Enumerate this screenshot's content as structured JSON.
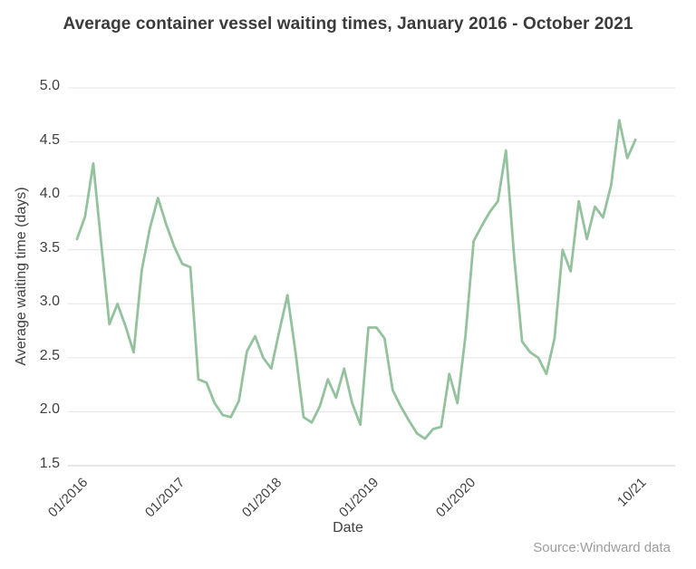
{
  "source": "Source:Windward data",
  "chart_data": {
    "type": "line",
    "title": "Average container vessel waiting times, January 2016 - October 2021",
    "xlabel": "Date",
    "ylabel": "Average waiting time (days)",
    "ylim": [
      1.5,
      5.0
    ],
    "yticks": [
      1.5,
      2.0,
      2.5,
      3.0,
      3.5,
      4.0,
      4.5,
      5.0
    ],
    "grid": true,
    "legend": false,
    "line_color": "#94c29e",
    "grid_color": "#e4e4e4",
    "baseline_color": "#cfcfcf",
    "x": [
      "01/2016",
      "02/2016",
      "03/2016",
      "04/2016",
      "05/2016",
      "06/2016",
      "07/2016",
      "08/2016",
      "09/2016",
      "10/2016",
      "11/2016",
      "12/2016",
      "01/2017",
      "02/2017",
      "03/2017",
      "04/2017",
      "05/2017",
      "06/2017",
      "07/2017",
      "08/2017",
      "09/2017",
      "10/2017",
      "11/2017",
      "12/2017",
      "01/2018",
      "02/2018",
      "03/2018",
      "04/2018",
      "05/2018",
      "06/2018",
      "07/2018",
      "08/2018",
      "09/2018",
      "10/2018",
      "11/2018",
      "12/2018",
      "01/2019",
      "02/2019",
      "03/2019",
      "04/2019",
      "05/2019",
      "06/2019",
      "07/2019",
      "08/2019",
      "09/2019",
      "10/2019",
      "11/2019",
      "12/2019",
      "01/2020",
      "02/2020",
      "03/2020",
      "04/2020",
      "05/2020",
      "06/2020",
      "07/2020",
      "08/2020",
      "09/2020",
      "10/2020",
      "11/2020",
      "12/2020",
      "01/2021",
      "02/2021",
      "03/2021",
      "04/2021",
      "05/2021",
      "06/2021",
      "07/2021",
      "08/2021",
      "09/2021",
      "10/2021"
    ],
    "values": [
      3.6,
      3.81,
      4.3,
      3.55,
      2.81,
      3.0,
      2.79,
      2.55,
      3.31,
      3.7,
      3.98,
      3.74,
      3.53,
      3.37,
      3.34,
      2.3,
      2.27,
      2.08,
      1.97,
      1.95,
      2.1,
      2.56,
      2.7,
      2.5,
      2.4,
      2.75,
      3.08,
      2.55,
      1.95,
      1.9,
      2.05,
      2.3,
      2.13,
      2.4,
      2.08,
      1.88,
      2.78,
      2.78,
      2.68,
      2.2,
      2.05,
      1.92,
      1.8,
      1.75,
      1.84,
      1.86,
      2.35,
      2.08,
      2.7,
      3.58,
      3.72,
      3.85,
      3.95,
      4.42,
      3.45,
      2.65,
      2.55,
      2.5,
      2.35,
      2.68,
      3.5,
      3.3,
      3.95,
      3.6,
      3.9,
      3.8,
      4.1,
      4.7,
      4.35,
      4.52
    ],
    "xticks": [
      {
        "index": 0,
        "label": "01/2016"
      },
      {
        "index": 12,
        "label": "01/2017"
      },
      {
        "index": 24,
        "label": "01/2018"
      },
      {
        "index": 36,
        "label": "01/2019"
      },
      {
        "index": 48,
        "label": "01/2020"
      },
      {
        "index": 69,
        "label": "10/21"
      }
    ]
  }
}
